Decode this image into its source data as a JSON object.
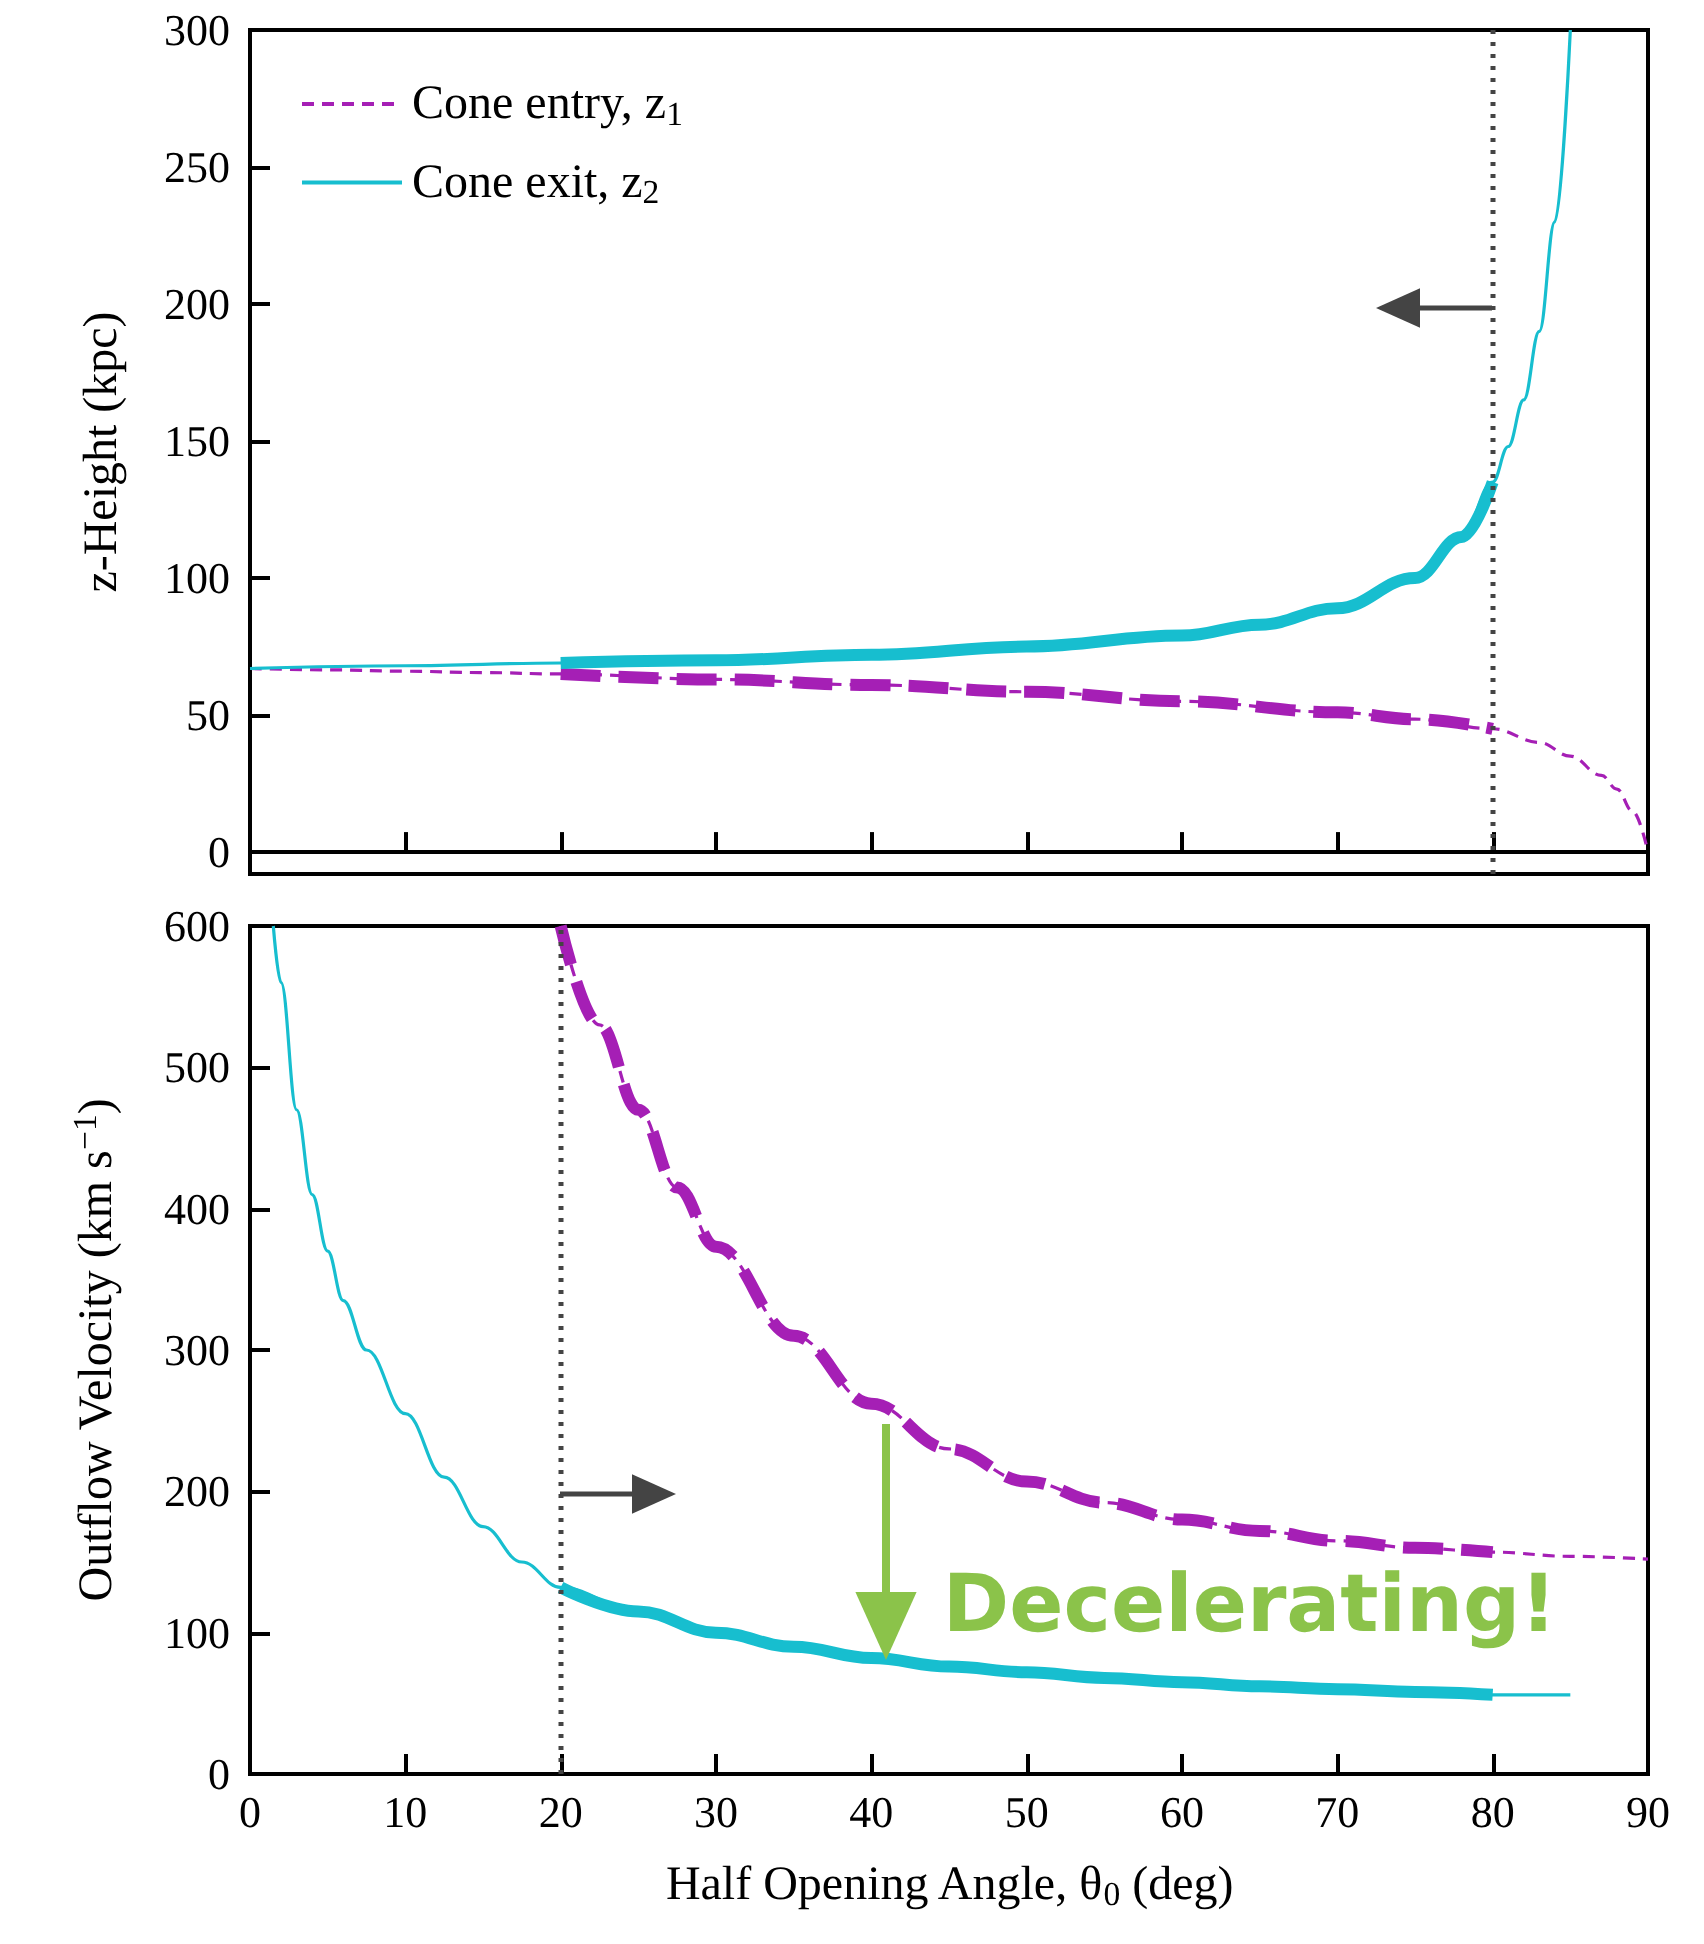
{
  "chart_data": [
    {
      "type": "line",
      "ylabel": "z-Height (kpc)",
      "xlim": [
        0,
        90
      ],
      "xticks": [
        0,
        10,
        20,
        30,
        40,
        50,
        60,
        70,
        80,
        90
      ],
      "ylim": [
        -8,
        300
      ],
      "yticks": [
        0,
        50,
        100,
        150,
        200,
        250,
        300
      ],
      "tick_labels": "y",
      "legend": "top left",
      "marker": "none",
      "series": [
        {
          "name": "Cone entry, z$_{1}$",
          "color": "#a51fb5",
          "line_style": "dashed",
          "x": [
            0,
            5,
            10,
            15,
            20,
            30,
            40,
            50,
            60,
            70,
            75,
            80,
            83,
            85,
            87,
            88,
            89,
            90
          ],
          "values": [
            67,
            66.5,
            66,
            65.5,
            65,
            63,
            61,
            58.5,
            55,
            51,
            48.5,
            45,
            40,
            35,
            28,
            23,
            15,
            0
          ]
        },
        {
          "color": "#a51fb5",
          "line_style": "dashed",
          "x": [
            20,
            30,
            40,
            50,
            60,
            70,
            75,
            80
          ],
          "values": [
            65,
            63,
            61,
            58.5,
            55,
            51,
            48.5,
            45
          ]
        },
        {
          "name": "Cone exit, z$_{2}$",
          "color": "#17becf",
          "line_style": "solid",
          "x": [
            0,
            10,
            20,
            30,
            40,
            50,
            60,
            65,
            70,
            75,
            78,
            80,
            81,
            82,
            83,
            84,
            85
          ],
          "values": [
            67,
            68,
            69,
            70,
            72,
            75,
            79,
            83,
            89,
            100,
            115,
            135,
            148,
            165,
            190,
            230,
            300
          ]
        },
        {
          "color": "#17becf",
          "line_style": "solid",
          "x": [
            20,
            30,
            40,
            50,
            60,
            65,
            70,
            75,
            78,
            80
          ],
          "values": [
            69,
            70,
            72,
            75,
            79,
            83,
            89,
            100,
            115,
            135
          ]
        }
      ],
      "ref_lines": [
        {
          "axis": "x",
          "value": 80,
          "color": "#444444",
          "line_style": "dotted"
        }
      ]
    },
    {
      "type": "line",
      "xlabel": "Half Opening Angle, θ$_{0}$ (deg)",
      "ylabel": "Outflow Velocity (km s$^{−1}$)",
      "xlim": [
        0,
        90
      ],
      "xticks": [
        0,
        10,
        20,
        30,
        40,
        50,
        60,
        70,
        80,
        90
      ],
      "ylim": [
        0,
        600
      ],
      "yticks": [
        0,
        100,
        200,
        300,
        400,
        500,
        600
      ],
      "marker": "none",
      "series": [
        {
          "color": "#a51fb5",
          "line_style": "dashed",
          "x": [
            20,
            22.5,
            25,
            27.5,
            30,
            35,
            40,
            45,
            50,
            55,
            60,
            65,
            70,
            75,
            80,
            85,
            90
          ],
          "values": [
            600,
            530,
            470,
            415,
            373,
            310,
            262,
            230,
            207,
            192,
            180,
            172,
            165,
            160,
            157,
            154,
            152
          ]
        },
        {
          "color": "#a51fb5",
          "line_style": "dashed",
          "x": [
            20,
            22.5,
            25,
            27.5,
            30,
            35,
            40,
            45,
            50,
            55,
            60,
            65,
            70,
            75,
            80
          ],
          "values": [
            600,
            530,
            470,
            415,
            373,
            310,
            262,
            230,
            207,
            192,
            180,
            172,
            165,
            160,
            157
          ]
        },
        {
          "color": "#17becf",
          "line_style": "solid",
          "x": [
            1.5,
            2,
            3,
            4,
            5,
            6,
            7.5,
            10,
            12.5,
            15,
            17.5,
            20,
            25,
            30,
            35,
            40,
            45,
            50,
            55,
            60,
            65,
            70,
            75,
            80,
            85
          ],
          "values": [
            600,
            560,
            470,
            410,
            370,
            335,
            300,
            255,
            210,
            175,
            150,
            132,
            115,
            100,
            90,
            82,
            76,
            72,
            68,
            65,
            62,
            60,
            58,
            56,
            56
          ]
        },
        {
          "color": "#17becf",
          "line_style": "solid",
          "x": [
            20,
            25,
            30,
            35,
            40,
            45,
            50,
            55,
            60,
            65,
            70,
            75,
            80
          ],
          "values": [
            132,
            115,
            100,
            90,
            82,
            76,
            72,
            68,
            65,
            62,
            60,
            58,
            56
          ]
        }
      ],
      "ref_lines": [
        {
          "axis": "x",
          "value": 20,
          "color": "#444444",
          "line_style": "dotted"
        }
      ],
      "annotations": [
        {
          "text": "Decelerating!",
          "x": 41,
          "y": 80
        }
      ]
    }
  ]
}
